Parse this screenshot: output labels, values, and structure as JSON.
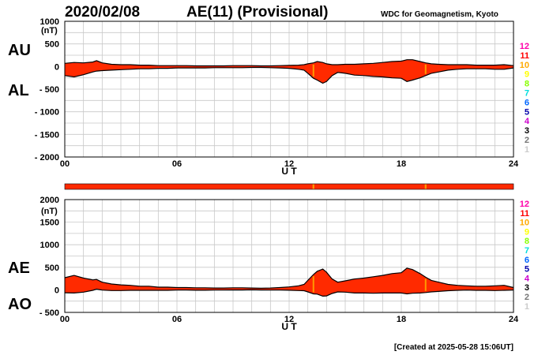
{
  "header": {
    "date": "2020/02/08",
    "title": "AE(11) (Provisional)",
    "source": "WDC for Geomagnetism, Kyoto"
  },
  "footer": {
    "created": "[Created at 2025-05-28 15:06UT]"
  },
  "colors": {
    "fill": "#ff2a00",
    "outline": "#000000",
    "grid": "#c8c8c8",
    "station_bar": "#ff2a00",
    "station_marker": "#ff9900"
  },
  "station_legend": [
    {
      "label": "12",
      "color": "#ff00aa"
    },
    {
      "label": "11",
      "color": "#ff0000"
    },
    {
      "label": "10",
      "color": "#ffaa00"
    },
    {
      "label": "9",
      "color": "#ffff00"
    },
    {
      "label": "8",
      "color": "#88ff00"
    },
    {
      "label": "7",
      "color": "#00dddd"
    },
    {
      "label": "6",
      "color": "#0066ff"
    },
    {
      "label": "5",
      "color": "#0000aa"
    },
    {
      "label": "4",
      "color": "#cc00cc"
    },
    {
      "label": "3",
      "color": "#000000"
    },
    {
      "label": "2",
      "color": "#777777"
    },
    {
      "label": "1",
      "color": "#cccccc"
    }
  ],
  "station_bar": {
    "marker_hours": [
      13.3,
      19.3
    ]
  },
  "chart_data": [
    {
      "type": "area",
      "name": "AU/AL",
      "xlabel": "U T",
      "xlim": [
        0,
        24
      ],
      "xticks": [
        "00",
        "06",
        "12",
        "18",
        "24"
      ],
      "ylim": [
        -2000,
        1000
      ],
      "yticks": [
        1000,
        500,
        0,
        -500,
        -1000,
        -1500,
        -2000
      ],
      "ytick_labels": [
        "1000",
        "500",
        "0",
        "- 500",
        "- 1000",
        "- 1500",
        "- 2000"
      ],
      "unit": "(nT)",
      "upper_label": "AU",
      "lower_label": "AL",
      "x": [
        0,
        0.5,
        1,
        1.5,
        1.7,
        2,
        2.5,
        3,
        3.5,
        4,
        4.5,
        5,
        5.5,
        6,
        6.5,
        7,
        7.5,
        8,
        8.5,
        9,
        9.5,
        10,
        10.5,
        11,
        11.5,
        12,
        12.5,
        12.8,
        13,
        13.3,
        13.5,
        13.8,
        14,
        14.3,
        14.6,
        15,
        15.5,
        16,
        16.5,
        17,
        17.5,
        18,
        18.3,
        18.6,
        19,
        19.3,
        19.6,
        20,
        20.5,
        21,
        21.5,
        22,
        22.5,
        23,
        23.5,
        24
      ],
      "series": [
        {
          "name": "AU",
          "values": [
            70,
            90,
            80,
            100,
            130,
            80,
            50,
            40,
            40,
            30,
            30,
            20,
            20,
            20,
            20,
            15,
            15,
            15,
            15,
            20,
            20,
            20,
            15,
            15,
            20,
            25,
            30,
            40,
            60,
            80,
            110,
            90,
            60,
            40,
            40,
            50,
            50,
            60,
            70,
            90,
            110,
            120,
            150,
            150,
            110,
            80,
            60,
            50,
            40,
            40,
            40,
            30,
            30,
            30,
            40,
            20
          ]
        },
        {
          "name": "AL",
          "values": [
            -200,
            -230,
            -180,
            -120,
            -100,
            -90,
            -80,
            -70,
            -60,
            -50,
            -50,
            -40,
            -40,
            -30,
            -30,
            -30,
            -30,
            -25,
            -25,
            -25,
            -25,
            -20,
            -20,
            -25,
            -30,
            -40,
            -60,
            -80,
            -150,
            -260,
            -300,
            -370,
            -330,
            -200,
            -130,
            -150,
            -190,
            -200,
            -220,
            -230,
            -250,
            -260,
            -330,
            -300,
            -250,
            -200,
            -150,
            -120,
            -80,
            -60,
            -50,
            -50,
            -50,
            -60,
            -60,
            -30
          ]
        }
      ]
    },
    {
      "type": "area",
      "name": "AE/AO",
      "xlabel": "U T",
      "xlim": [
        0,
        24
      ],
      "xticks": [
        "00",
        "06",
        "12",
        "18",
        "24"
      ],
      "ylim": [
        -500,
        2000
      ],
      "yticks": [
        2000,
        1500,
        1000,
        500,
        0,
        -500
      ],
      "ytick_labels": [
        "2000",
        "1500",
        "1000",
        "500",
        "0",
        "- 500"
      ],
      "unit": "(nT)",
      "upper_label": "AE",
      "lower_label": "AO",
      "x": [
        0,
        0.5,
        1,
        1.5,
        1.7,
        2,
        2.5,
        3,
        3.5,
        4,
        4.5,
        5,
        5.5,
        6,
        6.5,
        7,
        7.5,
        8,
        8.5,
        9,
        9.5,
        10,
        10.5,
        11,
        11.5,
        12,
        12.5,
        12.8,
        13,
        13.3,
        13.5,
        13.8,
        14,
        14.3,
        14.6,
        15,
        15.5,
        16,
        16.5,
        17,
        17.5,
        18,
        18.3,
        18.6,
        19,
        19.3,
        19.6,
        20,
        20.5,
        21,
        21.5,
        22,
        22.5,
        23,
        23.5,
        24
      ],
      "series": [
        {
          "name": "AE",
          "values": [
            270,
            320,
            260,
            220,
            230,
            170,
            130,
            110,
            100,
            80,
            80,
            60,
            60,
            50,
            50,
            45,
            45,
            40,
            40,
            45,
            45,
            40,
            35,
            40,
            50,
            65,
            90,
            120,
            210,
            340,
            410,
            460,
            390,
            240,
            170,
            200,
            240,
            260,
            290,
            320,
            360,
            380,
            480,
            450,
            360,
            280,
            210,
            170,
            120,
            100,
            90,
            80,
            80,
            90,
            100,
            50
          ]
        },
        {
          "name": "AO",
          "values": [
            -65,
            -70,
            -50,
            -10,
            15,
            -5,
            -15,
            -15,
            -10,
            -10,
            -10,
            -10,
            -10,
            -5,
            -5,
            -8,
            -8,
            -5,
            -5,
            -3,
            -3,
            0,
            -3,
            -5,
            -5,
            -8,
            -15,
            -20,
            -45,
            -90,
            -95,
            -140,
            -135,
            -80,
            -45,
            -50,
            -70,
            -70,
            -75,
            -70,
            -70,
            -70,
            -90,
            -75,
            -70,
            -60,
            -45,
            -35,
            -20,
            -10,
            -5,
            -10,
            -10,
            -15,
            -10,
            -5
          ]
        }
      ]
    }
  ]
}
